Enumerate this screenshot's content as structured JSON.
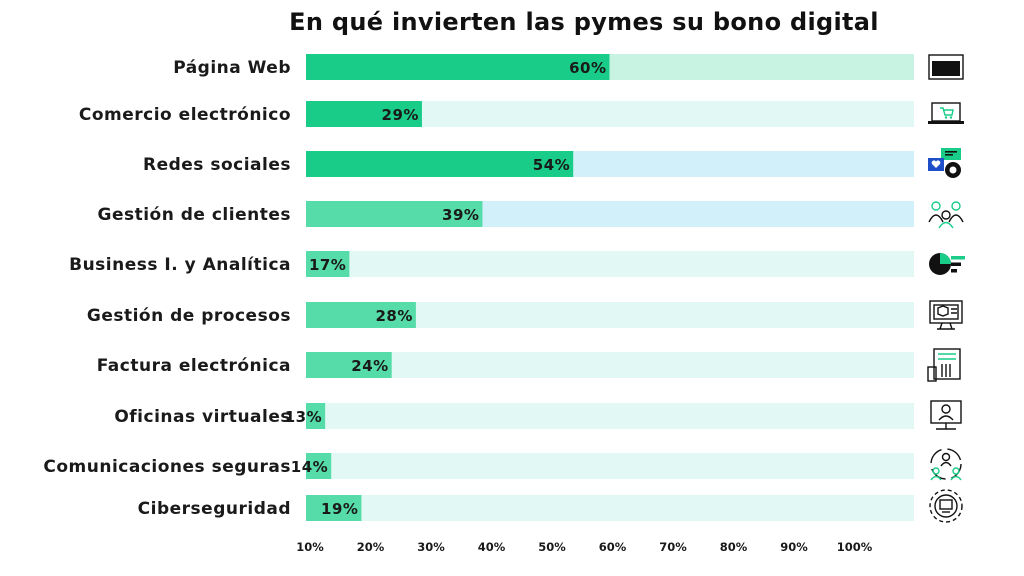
{
  "chart_data": {
    "type": "bar",
    "orientation": "horizontal",
    "title": "En qué invierten las pymes su bono digital",
    "xlabel": "",
    "ylabel": "",
    "categories": [
      "Página Web",
      "Comercio electrónico",
      "Redes sociales",
      "Gestión de clientes",
      "Business I. y Analítica",
      "Gestión de procesos",
      "Factura electrónica",
      "Oficinas virtuales",
      "Comunicaciones seguras",
      "Ciberseguridad"
    ],
    "values": [
      60,
      29,
      54,
      39,
      17,
      28,
      24,
      13,
      14,
      19
    ],
    "value_labels": [
      "60%",
      "29%",
      "54%",
      "39%",
      "17%",
      "28%",
      "24%",
      "13%",
      "14%",
      "19%"
    ],
    "x_ticks": [
      10,
      20,
      30,
      40,
      50,
      60,
      70,
      80,
      90,
      100
    ],
    "x_tick_labels": [
      "10%",
      "20%",
      "30%",
      "40%",
      "50%",
      "60%",
      "70%",
      "80%",
      "90%",
      "100%"
    ],
    "xlim": [
      0,
      100
    ],
    "grid": false,
    "legend": "none",
    "colors": {
      "bar_dark": "#19cd89",
      "bar_light": "#55dca9",
      "track": [
        "#c8f3e3",
        "#e2f8f4",
        "#d2f0f9",
        "#d2f0f9",
        "#e2f8f4",
        "#e2f8f4",
        "#e2f8f4",
        "#e2f8f4",
        "#e2f8f4",
        "#e2f8f4"
      ],
      "bar": [
        "#19cd89",
        "#19cd89",
        "#19cd89",
        "#55dca9",
        "#55dca9",
        "#55dca9",
        "#55dca9",
        "#55dca9",
        "#55dca9",
        "#55dca9"
      ]
    },
    "icons": [
      "browser-window-icon",
      "laptop-cart-icon",
      "social-chat-icon",
      "customer-group-icon",
      "pie-analytics-icon",
      "process-monitor-icon",
      "invoice-hand-icon",
      "virtual-office-icon",
      "secure-network-icon",
      "cyber-shield-icon"
    ]
  }
}
